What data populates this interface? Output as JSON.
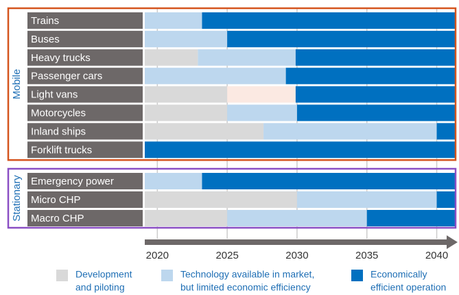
{
  "chart_data": {
    "type": "timeline",
    "xlim": [
      2019.1,
      2041.3
    ],
    "xticks": [
      2020,
      2025,
      2030,
      2035,
      2040
    ],
    "legend": [
      {
        "name": [
          "Development",
          "and piloting"
        ],
        "color": "#d9d9d9"
      },
      {
        "name": [
          "Technology available in market,",
          "but limited economic efficiency"
        ],
        "color": "#bdd7ee"
      },
      {
        "name": [
          "Economically",
          "efficient operation"
        ],
        "color": "#0070c0"
      }
    ],
    "groups": [
      {
        "label": "Mobile",
        "color": "#d5541e",
        "rows": [
          {
            "label": "Trains",
            "segments": [
              {
                "start": 2019.1,
                "end": 2023.2,
                "color": "#bdd7ee"
              },
              {
                "start": 2023.2,
                "end": 2041.3,
                "color": "#0070c0"
              }
            ]
          },
          {
            "label": "Buses",
            "segments": [
              {
                "start": 2019.1,
                "end": 2025,
                "color": "#bdd7ee"
              },
              {
                "start": 2025,
                "end": 2041.3,
                "color": "#0070c0"
              }
            ]
          },
          {
            "label": "Heavy trucks",
            "segments": [
              {
                "start": 2019.1,
                "end": 2022.9,
                "color": "#d9d9d9"
              },
              {
                "start": 2022.9,
                "end": 2029.9,
                "color": "#bdd7ee"
              },
              {
                "start": 2029.9,
                "end": 2041.3,
                "color": "#0070c0"
              }
            ]
          },
          {
            "label": "Passenger cars",
            "segments": [
              {
                "start": 2019.1,
                "end": 2029.2,
                "color": "#bdd7ee"
              },
              {
                "start": 2029.2,
                "end": 2041.3,
                "color": "#0070c0"
              }
            ]
          },
          {
            "label": "Light vans",
            "segments": [
              {
                "start": 2019.1,
                "end": 2025,
                "color": "#d9d9d9"
              },
              {
                "start": 2025,
                "end": 2029.9,
                "color": "#fbe9e2"
              },
              {
                "start": 2029.9,
                "end": 2041.3,
                "color": "#0070c0"
              }
            ]
          },
          {
            "label": "Motorcycles",
            "segments": [
              {
                "start": 2019.1,
                "end": 2025,
                "color": "#d9d9d9"
              },
              {
                "start": 2025,
                "end": 2030,
                "color": "#bdd7ee"
              },
              {
                "start": 2030,
                "end": 2041.3,
                "color": "#0070c0"
              }
            ]
          },
          {
            "label": "Inland ships",
            "segments": [
              {
                "start": 2019.1,
                "end": 2027.6,
                "color": "#d9d9d9"
              },
              {
                "start": 2027.6,
                "end": 2040,
                "color": "#bdd7ee"
              },
              {
                "start": 2040,
                "end": 2041.3,
                "color": "#0070c0"
              }
            ]
          },
          {
            "label": "Forklift trucks",
            "segments": [
              {
                "start": 2019.1,
                "end": 2041.3,
                "color": "#0070c0"
              }
            ]
          }
        ]
      },
      {
        "label": "Stationary",
        "color": "#8a4fc4",
        "rows": [
          {
            "label": "Emergency power",
            "segments": [
              {
                "start": 2019.1,
                "end": 2023.2,
                "color": "#bdd7ee"
              },
              {
                "start": 2023.2,
                "end": 2041.3,
                "color": "#0070c0"
              }
            ]
          },
          {
            "label": "Micro CHP",
            "segments": [
              {
                "start": 2019.1,
                "end": 2030,
                "color": "#d9d9d9"
              },
              {
                "start": 2030,
                "end": 2040,
                "color": "#bdd7ee"
              },
              {
                "start": 2040,
                "end": 2041.3,
                "color": "#0070c0"
              }
            ]
          },
          {
            "label": "Macro CHP",
            "segments": [
              {
                "start": 2019.1,
                "end": 2025,
                "color": "#d9d9d9"
              },
              {
                "start": 2025,
                "end": 2035,
                "color": "#bdd7ee"
              },
              {
                "start": 2035,
                "end": 2041.3,
                "color": "#0070c0"
              }
            ]
          }
        ]
      }
    ]
  }
}
